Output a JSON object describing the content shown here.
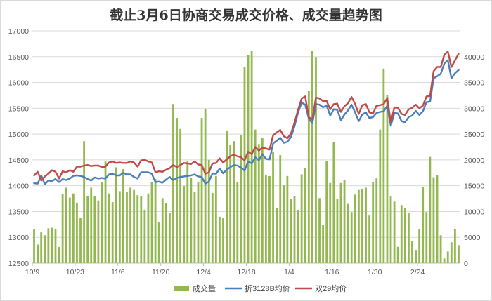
{
  "chart_data": {
    "type": "bar+line",
    "title": "截止3月6日协商交易成交价格、成交量趋势图",
    "x_ticks": [
      "10/9",
      "10/23",
      "11/6",
      "11/20",
      "12/4",
      "12/18",
      "1/4",
      "1/16",
      "1/30",
      "2/24"
    ],
    "x_tick_index": [
      0,
      12,
      24,
      36,
      48,
      60,
      72,
      84,
      96,
      108
    ],
    "y_left": {
      "min": 12500,
      "max": 17000,
      "step": 500,
      "ticks": [
        "12500",
        "13000",
        "13500",
        "14000",
        "14500",
        "15000",
        "15500",
        "16000",
        "16500",
        "17000"
      ]
    },
    "y_right": {
      "min": 0,
      "max": 40000,
      "step": 5000,
      "ticks": [
        "0",
        "5000",
        "10000",
        "15000",
        "20000",
        "25000",
        "30000",
        "35000",
        "40000"
      ]
    },
    "grid": "horizontal",
    "legend_position": "bottom",
    "colors": {
      "bar": "#92b84f",
      "line1": "#4a7ebb",
      "line2": "#be4b48",
      "grid": "#d9d9d9",
      "axis": "#bfbfbf"
    },
    "series": [
      {
        "name": "成交量",
        "type": "bar",
        "axis": "right",
        "values": [
          5800,
          3200,
          5300,
          4800,
          6000,
          6100,
          5900,
          2800,
          11900,
          13000,
          11300,
          12000,
          10400,
          7800,
          21000,
          11500,
          13000,
          11600,
          10800,
          14000,
          17500,
          12000,
          10500,
          16500,
          12400,
          16200,
          12200,
          13000,
          12600,
          11700,
          11500,
          9200,
          12000,
          14000,
          14500,
          7000,
          11200,
          10300,
          8600,
          27400,
          25000,
          23100,
          13300,
          17500,
          14700,
          12200,
          14000,
          25000,
          26500,
          17800,
          12100,
          15000,
          8000,
          7800,
          22800,
          20300,
          21000,
          14000,
          22000,
          33800,
          35800,
          36500,
          23000,
          20500,
          21500,
          15200,
          15000,
          19200,
          9500,
          18600,
          13400,
          15000,
          11000,
          11600,
          9200,
          15300,
          16400,
          29700,
          36500,
          35500,
          11200,
          6600,
          17600,
          13800,
          20900,
          11000,
          13800,
          14300,
          10200,
          8800,
          11800,
          12600,
          12800,
          13000,
          8200,
          13900,
          14600,
          23000,
          33500,
          29000,
          11500,
          10600,
          2800,
          10000,
          9500,
          8600,
          3800,
          2200,
          5900,
          13100,
          8800,
          18300,
          14800,
          15100,
          4800,
          800,
          2000,
          3600,
          5800,
          3100
        ]
      },
      {
        "name": "折3128B均价",
        "type": "line",
        "axis": "left",
        "values": [
          14050,
          14040,
          14200,
          14030,
          14100,
          14090,
          14130,
          14070,
          14130,
          14110,
          14140,
          14190,
          14200,
          14190,
          14170,
          14130,
          14100,
          14160,
          14140,
          14150,
          14140,
          14220,
          14230,
          14200,
          14200,
          14250,
          14220,
          14220,
          14170,
          14140,
          14260,
          14260,
          14260,
          14230,
          14070,
          14080,
          14060,
          14120,
          14170,
          14110,
          14150,
          14170,
          14180,
          14190,
          14200,
          14220,
          14180,
          14170,
          14040,
          14080,
          14240,
          14230,
          14330,
          14240,
          14310,
          14360,
          14400,
          14390,
          14350,
          14290,
          14470,
          14430,
          14550,
          14490,
          14610,
          14520,
          14510,
          14820,
          14870,
          14930,
          14830,
          14850,
          14940,
          15150,
          15420,
          15610,
          15570,
          15300,
          15210,
          15580,
          15570,
          15520,
          15550,
          15360,
          15480,
          15470,
          15270,
          15380,
          15460,
          15570,
          15420,
          15250,
          15380,
          15420,
          15310,
          15330,
          15410,
          15430,
          15440,
          15550,
          15160,
          15410,
          15400,
          15250,
          15230,
          15330,
          15360,
          15450,
          15370,
          15440,
          15620,
          15630,
          16080,
          16120,
          16170,
          16370,
          16430,
          16080,
          16180,
          16240
        ]
      },
      {
        "name": "双29均价",
        "type": "line",
        "axis": "left",
        "values": [
          14200,
          14270,
          14100,
          14180,
          14230,
          14300,
          14270,
          14140,
          14280,
          14260,
          14300,
          14270,
          14370,
          14370,
          14390,
          14400,
          14380,
          14390,
          14390,
          14360,
          14370,
          14450,
          14470,
          14440,
          14450,
          14440,
          14440,
          14470,
          14450,
          14370,
          14490,
          14500,
          14470,
          14450,
          14260,
          14280,
          14270,
          14310,
          14340,
          14400,
          14360,
          14400,
          14440,
          14430,
          14420,
          14470,
          14410,
          14400,
          14230,
          14260,
          14430,
          14440,
          14530,
          14450,
          14510,
          14570,
          14600,
          14570,
          14550,
          14490,
          14660,
          14610,
          14750,
          14680,
          14740,
          14720,
          14700,
          14980,
          15030,
          15080,
          14960,
          14920,
          15010,
          15220,
          15470,
          15690,
          15730,
          15330,
          15280,
          15710,
          15690,
          15640,
          15640,
          15480,
          15580,
          15590,
          15430,
          15540,
          15600,
          15720,
          15580,
          15390,
          15560,
          15580,
          15420,
          15400,
          15550,
          15560,
          15580,
          15700,
          15220,
          15520,
          15510,
          15390,
          15370,
          15480,
          15510,
          15570,
          15500,
          15550,
          15730,
          15740,
          16220,
          16300,
          16300,
          16540,
          16600,
          16300,
          16430,
          16560
        ]
      }
    ]
  }
}
